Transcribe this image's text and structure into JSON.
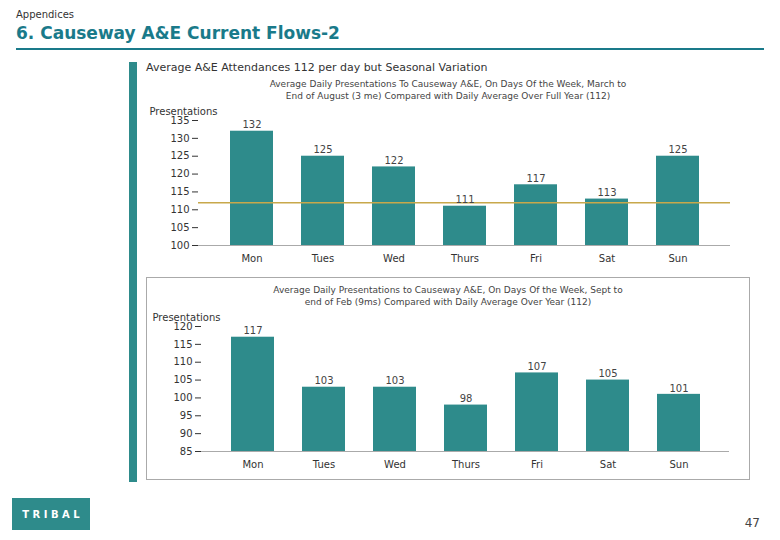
{
  "title": "6. Causeway A&E Current Flows-2",
  "subtitle": "Average A&E Attendances 112 per day but Seasonal Variation",
  "annotations": [
    "Appendices",
    "T R I B A L",
    "47"
  ],
  "color": "#1A7A8A",
  "chart_data": [
    {
      "type": "bar",
      "title": "Average Daily Presentations To Causeway A&E, On Days Of the Week, March to\nEnd of August (3 me) Compared with Daily Average Over Full Year (112)",
      "categories": [
        "Mon",
        "Tues",
        "Wed",
        "Thurs",
        "Fri",
        "Sat",
        "Sun"
      ],
      "values": [
        132,
        125,
        122,
        111,
        117,
        113,
        125
      ],
      "color": "#2E8B8B",
      "ylabel": "Presentations",
      "ylim": [
        100,
        135
      ],
      "yticks": [
        100,
        105,
        110,
        115,
        120,
        125,
        130,
        135
      ],
      "avg_line": {
        "value": 112,
        "color": "#C8A84B"
      },
      "data_labels": true,
      "grid": false
    },
    {
      "type": "bar",
      "title": "Average Daily Presentations to Causeway A&E, On Days Of the Week, Sept to\nend of Feb (9ms) Compared with Daily Average Over Year (112)",
      "categories": [
        "Mon",
        "Tues",
        "Wed",
        "Thurs",
        "Fri",
        "Sat",
        "Sun"
      ],
      "values": [
        117,
        103,
        103,
        98,
        107,
        105,
        101
      ],
      "color": "#2E8B8B",
      "ylabel": "Presentations",
      "ylim": [
        85,
        120
      ],
      "yticks": [
        85,
        90,
        95,
        100,
        105,
        110,
        115,
        120
      ],
      "data_labels": true,
      "grid": false
    }
  ]
}
